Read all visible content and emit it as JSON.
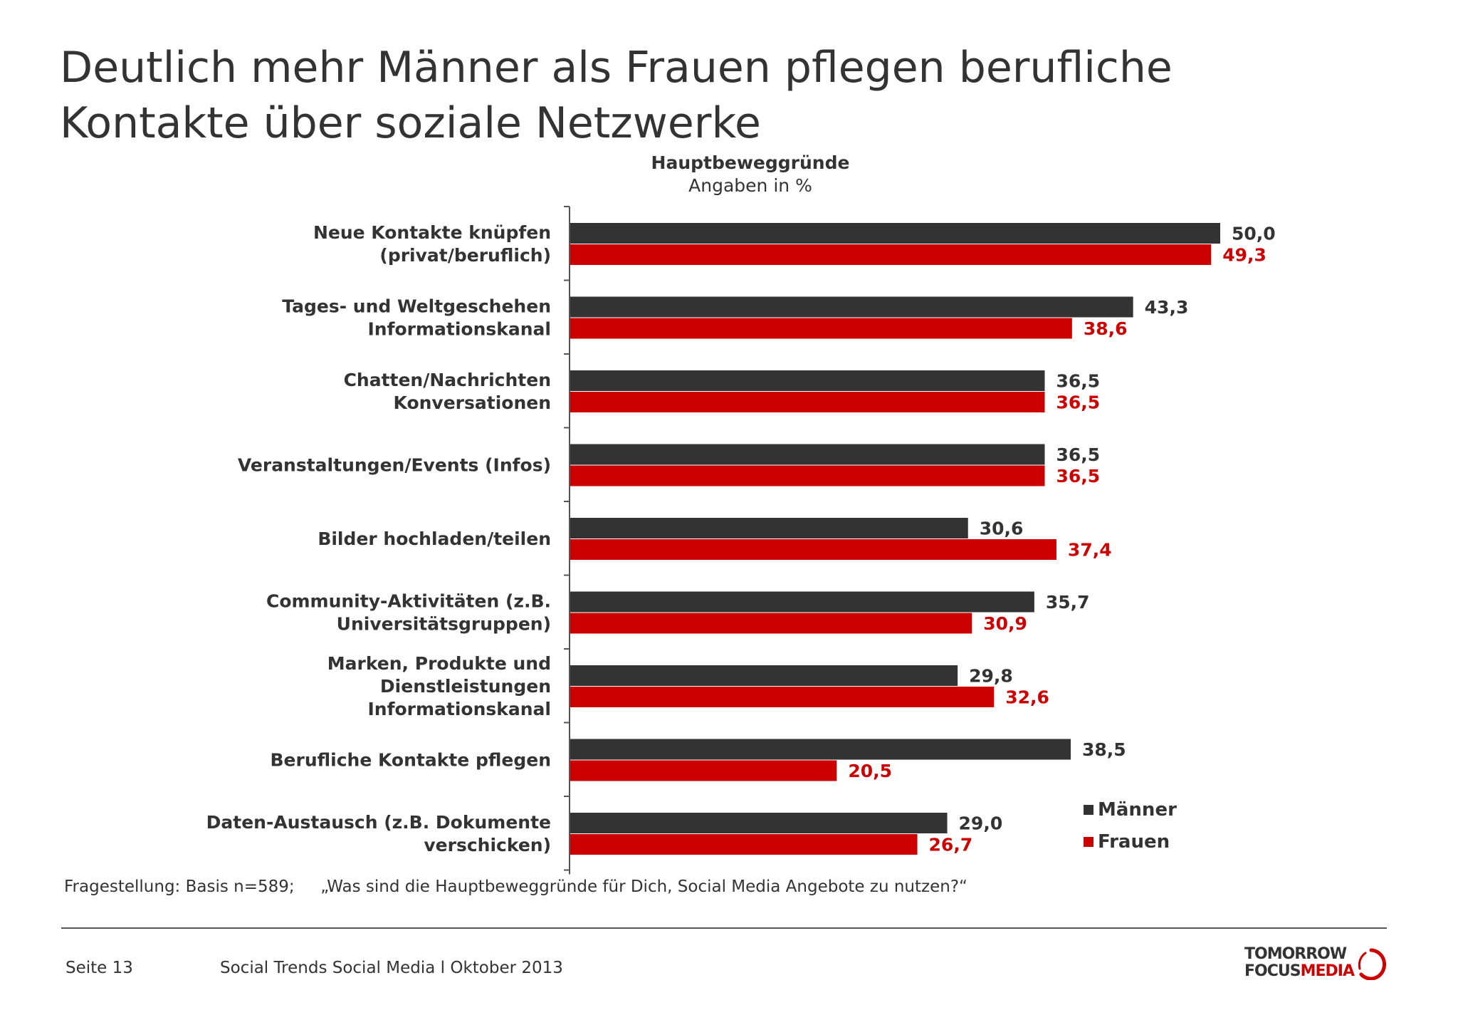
{
  "title_lines": [
    "Deutlich mehr Männer als Frauen pflegen berufliche",
    "Kontakte über soziale Netzwerke"
  ],
  "chart_data": {
    "type": "bar",
    "orientation": "horizontal",
    "title": "Hauptbeweggründe",
    "subtitle": "Angaben in %",
    "categories": [
      [
        "Neue Kontakte knüpfen",
        "(privat/beruflich)"
      ],
      [
        "Tages- und Weltgeschehen",
        "Informationskanal"
      ],
      [
        "Chatten/Nachrichten",
        "Konversationen"
      ],
      [
        "Veranstaltungen/Events (Infos)"
      ],
      [
        "Bilder hochladen/teilen"
      ],
      [
        "Community-Aktivitäten (z.B.",
        "Universitätsgruppen)"
      ],
      [
        "Marken, Produkte und",
        "Dienstleistungen",
        "Informationskanal"
      ],
      [
        "Berufliche Kontakte pflegen"
      ],
      [
        "Daten-Austausch (z.B. Dokumente",
        "verschicken)"
      ]
    ],
    "series": [
      {
        "name": "Männer",
        "color": "#333333",
        "values": [
          50.0,
          43.3,
          36.5,
          36.5,
          30.6,
          35.7,
          29.8,
          38.5,
          29.0
        ],
        "labels": [
          "50,0",
          "43,3",
          "36,5",
          "36,5",
          "30,6",
          "35,7",
          "29,8",
          "38,5",
          "29,0"
        ]
      },
      {
        "name": "Frauen",
        "color": "#cc0000",
        "values": [
          49.3,
          38.6,
          36.5,
          36.5,
          37.4,
          30.9,
          32.6,
          20.5,
          26.7
        ],
        "labels": [
          "49,3",
          "38,6",
          "36,5",
          "36,5",
          "37,4",
          "30,9",
          "32,6",
          "20,5",
          "26,7"
        ]
      }
    ],
    "xlim": [
      0,
      50
    ],
    "legend_position": "bottom-right",
    "grid": false
  },
  "legend": {
    "maenner": "Männer",
    "frauen": "Frauen"
  },
  "question": "Fragestellung: Basis n=589;     „Was sind die Hauptbeweggründe für Dich, Social Media Angebote zu nutzen?“",
  "footer": {
    "page": "Seite 13",
    "text": "Social Trends Social Media l Oktober 2013"
  },
  "logo": {
    "line1": "TOMORROW",
    "line2a": "FOCUS",
    "line2b": "MEDIA",
    "brand_color": "#cc0000"
  }
}
